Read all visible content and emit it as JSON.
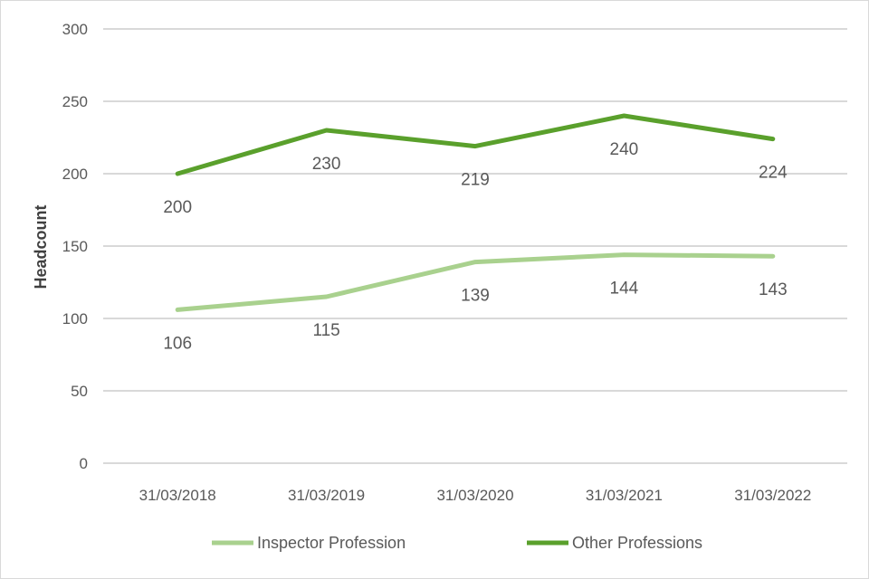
{
  "chart_data": {
    "type": "line",
    "title": "",
    "xlabel": "",
    "ylabel": "Headcount",
    "ylim": [
      0,
      300
    ],
    "yticks": [
      0,
      50,
      100,
      150,
      200,
      250,
      300
    ],
    "grid": true,
    "legend_position": "bottom",
    "categories": [
      "31/03/2018",
      "31/03/2019",
      "31/03/2020",
      "31/03/2021",
      "31/03/2022"
    ],
    "series": [
      {
        "name": "Inspector Profession",
        "values": [
          106,
          115,
          139,
          144,
          143
        ],
        "color": "#a9d18e"
      },
      {
        "name": "Other Professions",
        "values": [
          200,
          230,
          219,
          240,
          224
        ],
        "color": "#5aa02c"
      }
    ]
  }
}
